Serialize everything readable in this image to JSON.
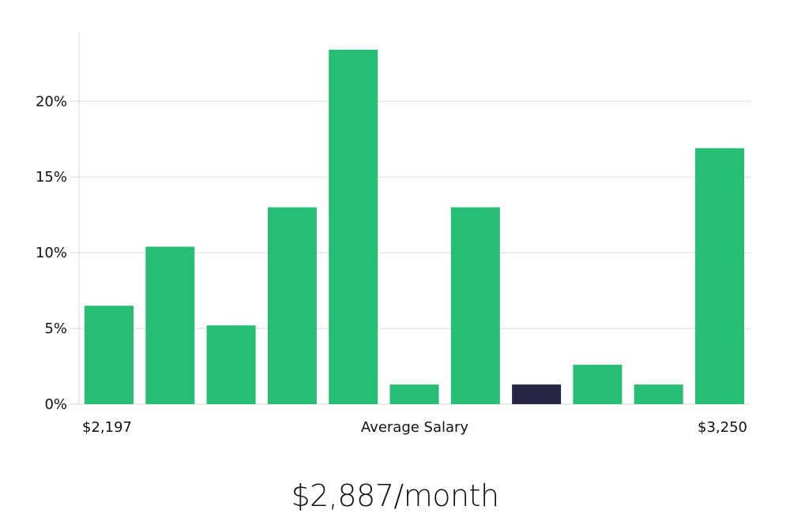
{
  "chart_data": {
    "type": "bar",
    "x_start_label": "$2,197",
    "x_center_label": "Average Salary",
    "x_end_label": "$3,250",
    "values": [
      6.5,
      10.4,
      5.2,
      13.0,
      23.4,
      1.3,
      13.0,
      1.3,
      2.6,
      1.3,
      16.9
    ],
    "highlight_index": 7,
    "yticks": [
      0,
      5,
      10,
      15,
      20
    ],
    "ytick_labels": [
      "0%",
      "5%",
      "10%",
      "15%",
      "20%"
    ],
    "ylim": [
      0,
      24.6
    ],
    "grid": true,
    "colors": {
      "bar": "#28bd74",
      "highlight": "#262445",
      "grid": "#d9d9d9"
    }
  },
  "caption": "$2,887/month"
}
